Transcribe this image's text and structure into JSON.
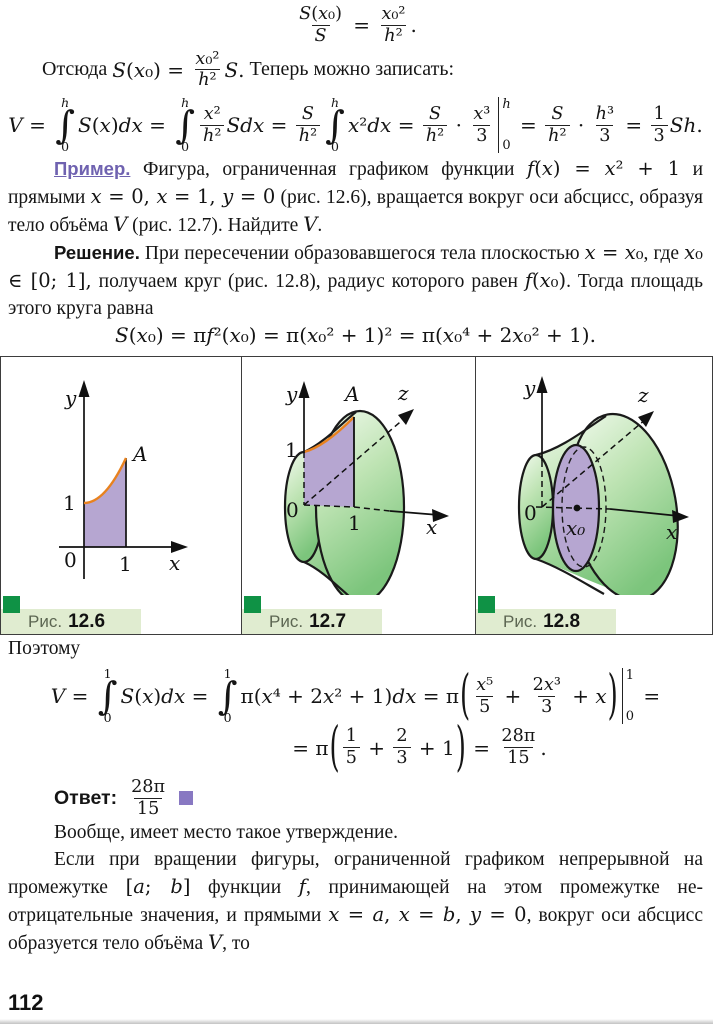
{
  "colors": {
    "accent": "#6f62b0",
    "answer_square": "#8878c2",
    "caption_square": "#0f9245",
    "caption_bar": "#e0ecd0",
    "purple_fill": "#b6a6d1",
    "orange_curve": "#e8821f"
  },
  "page": {
    "number": "112"
  },
  "formulas": {
    "ratio": [
      {
        "f": [
          "S(x₀)",
          "S"
        ]
      },
      {
        "m": " = "
      },
      {
        "f": [
          "x₀²",
          "h²"
        ]
      },
      {
        "m": "."
      }
    ],
    "intro": [
      {
        "r": "Отсюда "
      },
      {
        "m": "S(x₀) = "
      },
      {
        "f": [
          "x₀²",
          "h²"
        ]
      },
      {
        "m": "S."
      },
      {
        "r": " Теперь можно записать:"
      }
    ],
    "volume_derivation": [
      {
        "m": "V = "
      },
      {
        "int": [
          "h",
          "0"
        ]
      },
      {
        "m": "S(x)dx = "
      },
      {
        "int": [
          "h",
          "0"
        ]
      },
      {
        "f": [
          "x²",
          "h²"
        ]
      },
      {
        "m": "Sdx = "
      },
      {
        "f": [
          "S",
          "h²"
        ]
      },
      {
        "int": [
          "h",
          "0"
        ]
      },
      {
        "m": "x²dx = "
      },
      {
        "f": [
          "S",
          "h²"
        ]
      },
      {
        "m": " · "
      },
      {
        "f": [
          "x³",
          "3"
        ]
      },
      {
        "bar": [
          "h",
          "0"
        ]
      },
      {
        "m": " = "
      },
      {
        "f": [
          "S",
          "h²"
        ]
      },
      {
        "m": " · "
      },
      {
        "f": [
          "h³",
          "3"
        ]
      },
      {
        "m": " = "
      },
      {
        "f": [
          "1",
          "3"
        ]
      },
      {
        "m": "Sh."
      }
    ],
    "area": [
      {
        "m": "S(x₀) = πf²(x₀) = π(x₀² + 1)² = π(x₀⁴ + 2x₀² + 1)."
      }
    ],
    "example_volume_1": [
      {
        "m": "V = "
      },
      {
        "int": [
          "1",
          "0"
        ]
      },
      {
        "m": "S(x)dx = "
      },
      {
        "int": [
          "1",
          "0"
        ]
      },
      {
        "m": "π(x⁴ + 2x² + 1)dx = π"
      },
      {
        "lp": 1
      },
      {
        "f": [
          "x⁵",
          "5"
        ]
      },
      {
        "m": " + "
      },
      {
        "f": [
          "2x³",
          "3"
        ]
      },
      {
        "m": " + x"
      },
      {
        "rp": 1
      },
      {
        "bar": [
          "1",
          "0"
        ]
      },
      {
        "m": " ="
      }
    ],
    "example_volume_2": [
      {
        "m": "= π"
      },
      {
        "lp": 1
      },
      {
        "f": [
          "1",
          "5"
        ]
      },
      {
        "m": " + "
      },
      {
        "f": [
          "2",
          "3"
        ]
      },
      {
        "m": " + 1"
      },
      {
        "rp": 1
      },
      {
        "m": " = "
      },
      {
        "f": [
          "28π",
          "15"
        ]
      },
      {
        "m": "."
      }
    ]
  },
  "paragraphs": {
    "example_label": "Пример.",
    "example_body": [
      {
        "r": " Фигура, ограниченная графиком функции "
      },
      {
        "m": "f(x) = x² + 1"
      },
      {
        "r": " и прямыми "
      },
      {
        "m": "x = 0, x = 1, y = 0"
      },
      {
        "r": " (рис. 12.6), вращается вокруг оси абсцисс, об­разуя тело объёма "
      },
      {
        "m": "V"
      },
      {
        "r": " (рис. 12.7). Найдите "
      },
      {
        "m": "V"
      },
      {
        "r": "."
      }
    ],
    "solution_label": "Решение.",
    "solution_body": [
      {
        "r": " При пересечении образовавшегося тела плоскостью "
      },
      {
        "m": "x = x₀"
      },
      {
        "r": ", где "
      },
      {
        "m": "x₀ ∈ [0; 1],"
      },
      {
        "r": " получаем круг (рис. 12.8), радиус которого равен "
      },
      {
        "m": "f(x₀)"
      },
      {
        "r": ". Тогда площадь этого круга равна"
      }
    ],
    "poetomu": "Поэтому",
    "statement_intro": "Вообще, имеет место такое утверждение.",
    "statement_body": [
      {
        "r": "Если при вращении фигуры, ограниченной графиком непрерывной на промежутке "
      },
      {
        "m": "[a; b]"
      },
      {
        "r": " функции "
      },
      {
        "m": "f"
      },
      {
        "r": ", принимающей на этом промежутке не­отрицательные значения, и прямыми "
      },
      {
        "m": "x = a, x = b, y = 0"
      },
      {
        "r": ", вокруг оси аб­сцисс образуется тело объёма "
      },
      {
        "m": "V"
      },
      {
        "r": ", то"
      }
    ]
  },
  "answer": {
    "label": "Ответ:",
    "value": [
      {
        "f": [
          "28π",
          "15"
        ]
      }
    ]
  },
  "figures": {
    "f1": {
      "caption_prefix": "Рис.",
      "caption_number": "12.6",
      "labels": {
        "y": "y",
        "A": "A",
        "one_y": "1",
        "zero": "0",
        "one_x": "1",
        "x": "x"
      }
    },
    "f2": {
      "caption_prefix": "Рис.",
      "caption_number": "12.7",
      "labels": {
        "y": "y",
        "A": "A",
        "z": "z",
        "one_y": "1",
        "zero": "0",
        "one_x": "1",
        "x": "x"
      }
    },
    "f3": {
      "caption_prefix": "Рис.",
      "caption_number": "12.8",
      "labels": {
        "y": "y",
        "z": "z",
        "zero": "0",
        "x0": "x₀",
        "x": "x"
      }
    }
  }
}
